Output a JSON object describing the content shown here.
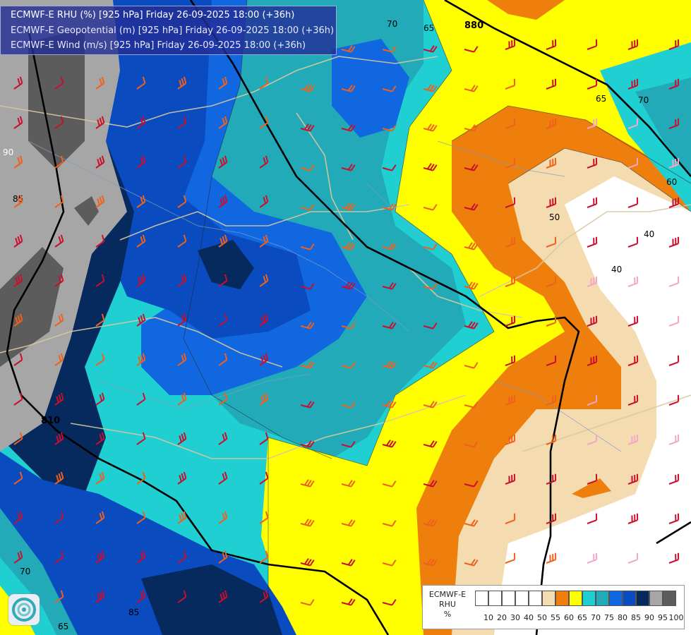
{
  "title": {
    "line1": "ECMWF-E RHU (%) [925 hPa] Friday 26-09-2025 18:00 (+36h)",
    "line2": "ECMWF-E Geopotential (m) [925 hPa] Friday 26-09-2025 18:00 (+36h)",
    "line3": "ECMWF-E Wind (m/s) [925 hPa] Friday 26-09-2025 18:00 (+36h)"
  },
  "legend": {
    "model": "ECMWF-E",
    "variable": "RHU",
    "unit": "%",
    "levels": [
      "10",
      "20",
      "30",
      "40",
      "50",
      "55",
      "60",
      "65",
      "70",
      "75",
      "80",
      "85",
      "90",
      "95",
      "100"
    ],
    "colors": [
      "#ffffff",
      "#ffffff",
      "#ffffff",
      "#ffffff",
      "#ffffff",
      "#f5dcb0",
      "#ef7f0d",
      "#ffff00",
      "#1fcfd2",
      "#22aab8",
      "#1067e0",
      "#0a4bbf",
      "#06295e",
      "#a6a6a6",
      "#5c5c5c"
    ]
  },
  "contour_labels": {
    "rhu": [
      "70",
      "65",
      "65",
      "70",
      "60",
      "50",
      "40",
      "40",
      "90",
      "85",
      "70",
      "65",
      "85"
    ],
    "geopotential": [
      "880",
      "810"
    ]
  },
  "colors": {
    "rhu_40": "#ffffff",
    "rhu_50": "#f5dcb0",
    "rhu_55": "#ef7f0d",
    "rhu_60": "#ffff00",
    "rhu_65": "#1fcfd2",
    "rhu_70": "#22aab8",
    "rhu_75": "#1067e0",
    "rhu_80": "#0a4bbf",
    "rhu_85": "#06295e",
    "rhu_90": "#a6a6a6",
    "rhu_95": "#5c5c5c",
    "wind_strong": "#c8102e",
    "wind_medium": "#f0601c",
    "wind_light": "#f4a6c8",
    "geopotential_line": "#000000",
    "borders": "#d8c8a0"
  }
}
